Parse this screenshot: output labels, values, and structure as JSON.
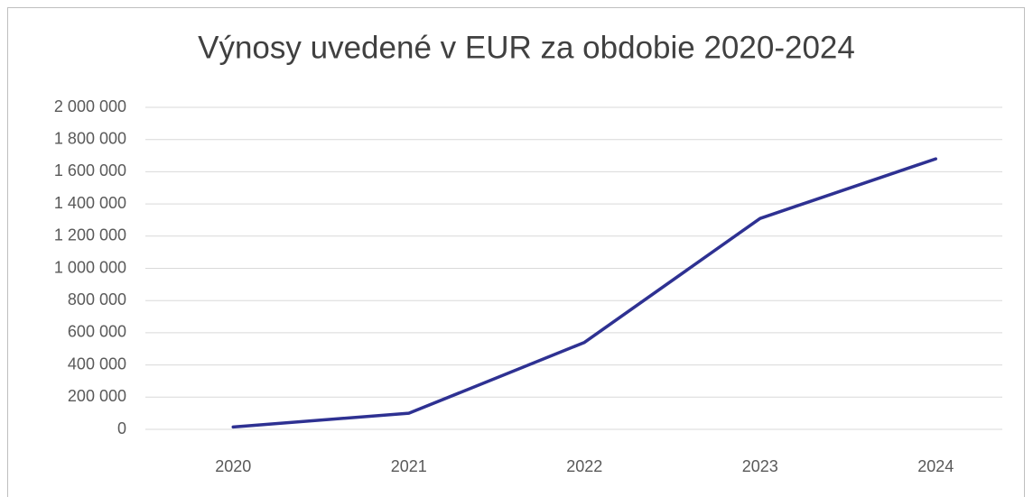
{
  "chart_data": {
    "type": "line",
    "title": "Výnosy uvedené v EUR za obdobie 2020-2024",
    "categories": [
      "2020",
      "2021",
      "2022",
      "2023",
      "2024"
    ],
    "series": [
      {
        "name": "Výnosy",
        "color": "#2e3192",
        "values": [
          15000,
          100000,
          540000,
          1310000,
          1680000
        ]
      }
    ],
    "ylim": [
      0,
      2000000
    ],
    "yticks": [
      0,
      {
        "value": 200000,
        "label": "200 000"
      },
      {
        "value": 400000,
        "label": "400 000"
      },
      {
        "value": 600000,
        "label": "600 000"
      },
      {
        "value": 800000,
        "label": "800 000"
      },
      {
        "value": 1000000,
        "label": "1 000 000"
      },
      {
        "value": 1200000,
        "label": "1 200 000"
      },
      {
        "value": 1400000,
        "label": "1 400 000"
      },
      {
        "value": 1600000,
        "label": "1 600 000"
      },
      {
        "value": 1800000,
        "label": "1 800 000"
      },
      {
        "value": 2000000,
        "label": "2 000 000"
      }
    ],
    "grid": true,
    "legend": false
  }
}
